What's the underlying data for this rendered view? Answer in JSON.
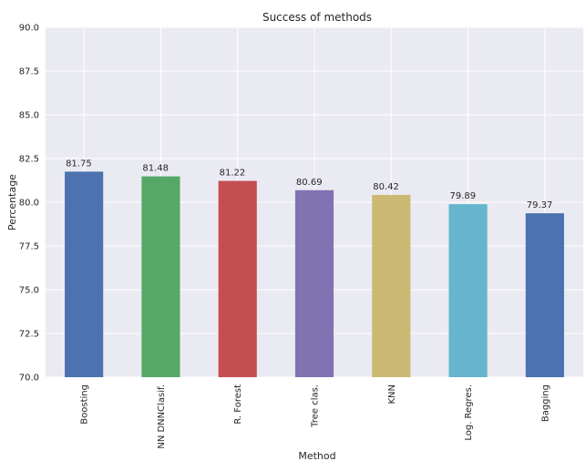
{
  "chart_data": {
    "type": "bar",
    "title": "Success of methods",
    "xlabel": "Method",
    "ylabel": "Percentage",
    "ylim": [
      70.0,
      90.0
    ],
    "yticks": [
      "70.0",
      "72.5",
      "75.0",
      "77.5",
      "80.0",
      "82.5",
      "85.0",
      "87.5",
      "90.0"
    ],
    "categories": [
      "Boosting",
      "NN DNNClasif.",
      "R. Forest",
      "Tree clas.",
      "KNN",
      "Log. Regres.",
      "Bagging"
    ],
    "values": [
      81.75,
      81.48,
      81.22,
      80.69,
      80.42,
      79.89,
      79.37
    ],
    "value_labels": [
      "81.75",
      "81.48",
      "81.22",
      "80.69",
      "80.42",
      "79.89",
      "79.37"
    ],
    "grid": true,
    "background_color": "#EAEAF2",
    "grid_color": "#FFFFFF",
    "colors": [
      "#4C72B0",
      "#55A868",
      "#C44E52",
      "#8172B2",
      "#CCB974",
      "#64B5CD",
      "#4C72B0"
    ]
  }
}
